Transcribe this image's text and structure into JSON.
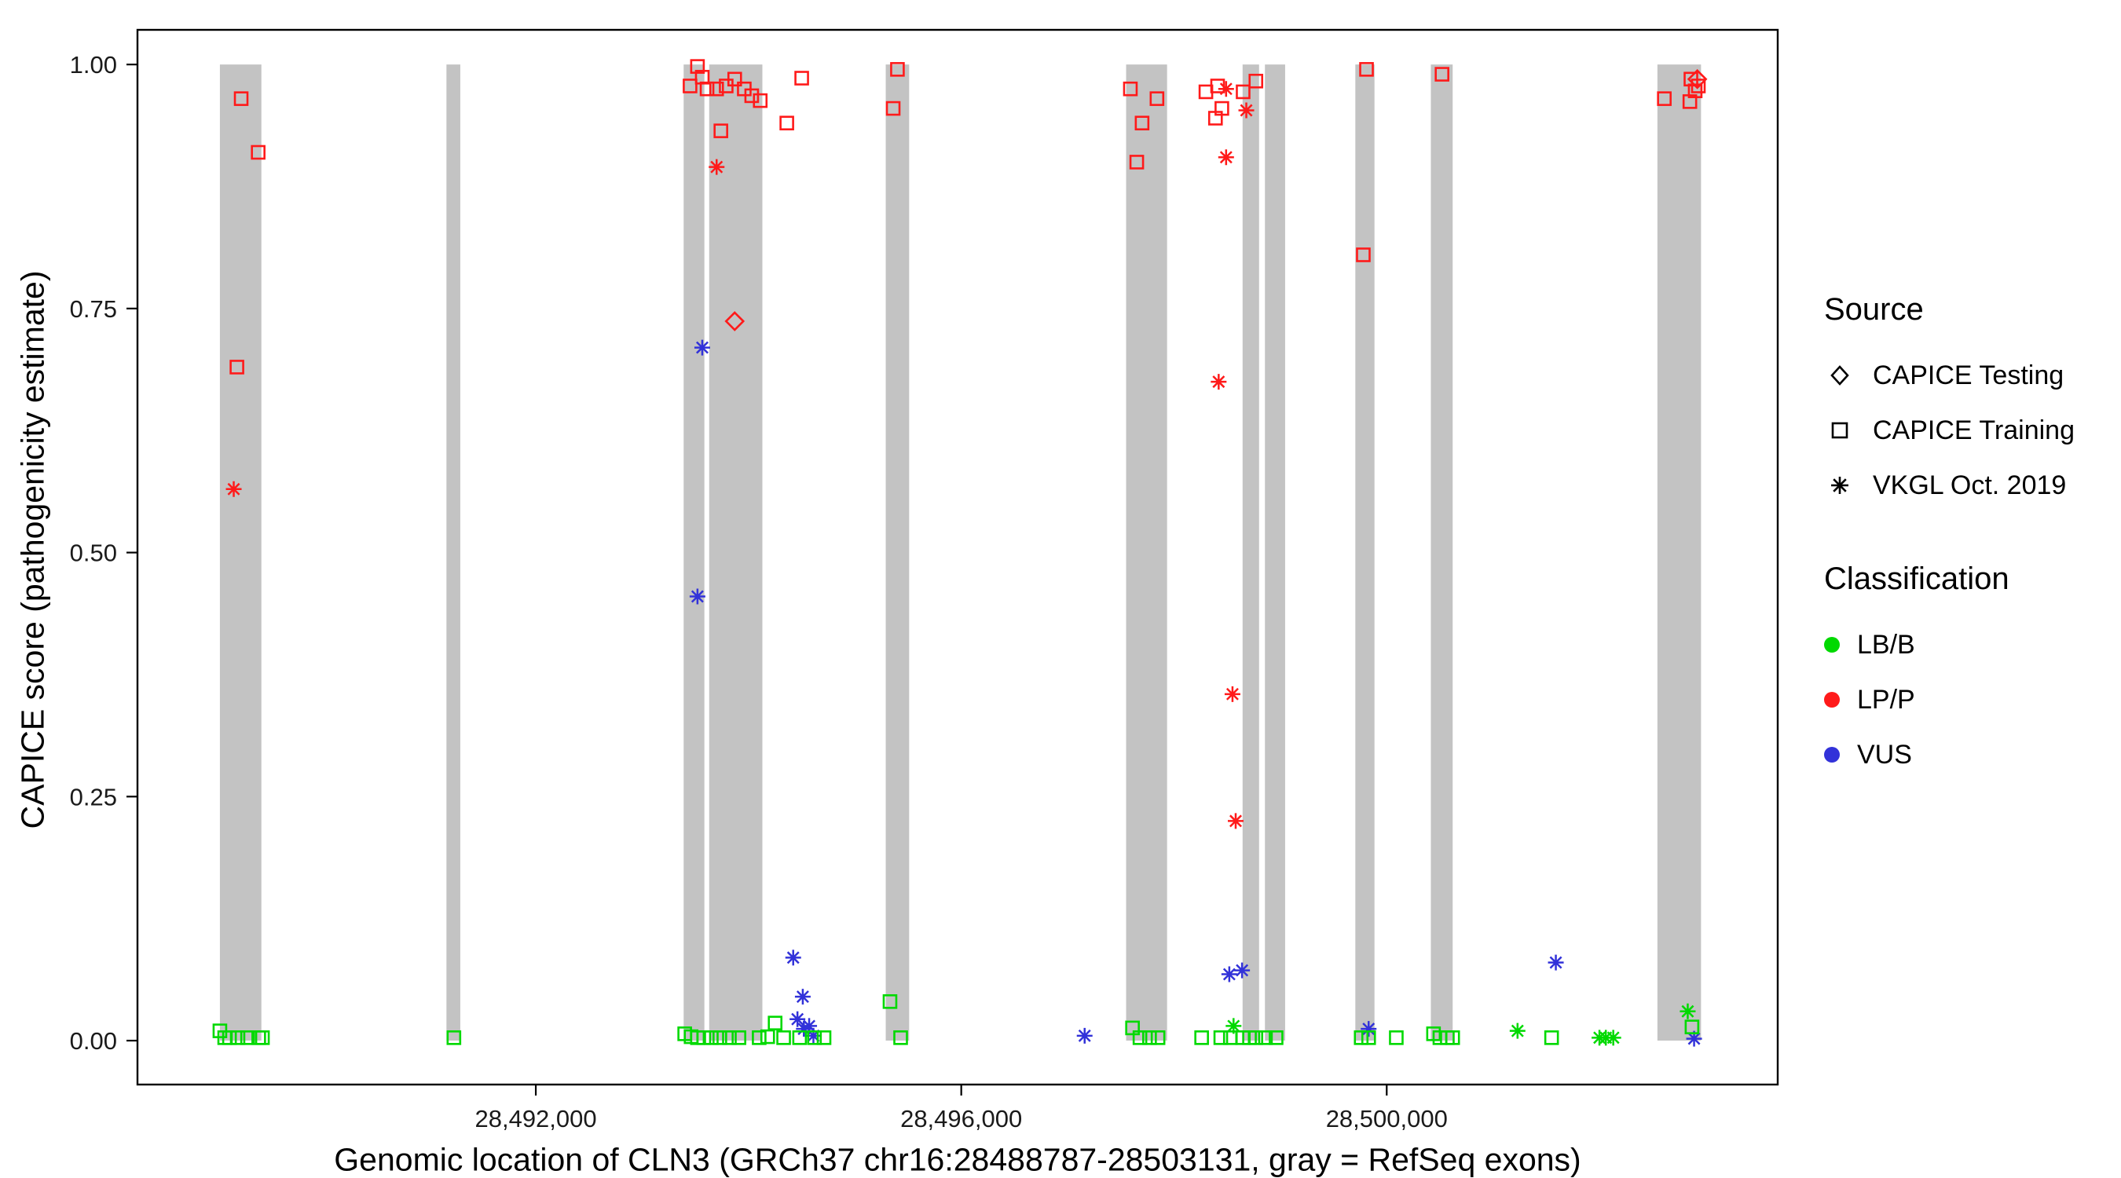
{
  "legend": {
    "source": {
      "title": "Source",
      "items": [
        {
          "label": "CAPICE Testing",
          "shape": "diamond"
        },
        {
          "label": "CAPICE Training",
          "shape": "square"
        },
        {
          "label": "VKGL Oct. 2019",
          "shape": "asterisk"
        }
      ]
    },
    "classification": {
      "title": "Classification",
      "items": [
        {
          "label": "LB/B",
          "color": "#00D900"
        },
        {
          "label": "LP/P",
          "color": "#FF1A1A"
        },
        {
          "label": "VUS",
          "color": "#3232D9"
        }
      ]
    }
  },
  "chart_data": {
    "type": "scatter",
    "title": "",
    "xlabel": "Genomic location of CLN3 (GRCh37 chr16:28488787-28503131, gray = RefSeq exons)",
    "ylabel": "CAPICE score (pathogenicity estimate)",
    "x_domain": [
      28488255,
      28503676
    ],
    "y_domain_expanded": [
      -0.045,
      1.0355
    ],
    "ylim": [
      0,
      1
    ],
    "grid": false,
    "legend_position": "right",
    "x_ticks": [
      {
        "value": 28492000,
        "label": "28,492,000"
      },
      {
        "value": 28496000,
        "label": "28,496,000"
      },
      {
        "value": 28500000,
        "label": "28,500,000"
      }
    ],
    "y_ticks": [
      {
        "value": 0.0,
        "label": "0.00"
      },
      {
        "value": 0.25,
        "label": "0.25"
      },
      {
        "value": 0.5,
        "label": "0.50"
      },
      {
        "value": 0.75,
        "label": "0.75"
      },
      {
        "value": 1.0,
        "label": "1.00"
      }
    ],
    "exon_color": "#C3C3C3",
    "exons": [
      [
        28489030,
        28489420
      ],
      [
        28491160,
        28491290
      ],
      [
        28493390,
        28493585
      ],
      [
        28493630,
        28494130
      ],
      [
        28495290,
        28495510
      ],
      [
        28497550,
        28497935
      ],
      [
        28498645,
        28498800
      ],
      [
        28498855,
        28499045
      ],
      [
        28499705,
        28499885
      ],
      [
        28500415,
        28500620
      ],
      [
        28502545,
        28502955
      ]
    ],
    "colors": {
      "LB/B": "#00D900",
      "LP/P": "#FF1A1A",
      "VUS": "#3232D9"
    },
    "shapes": {
      "training": "square",
      "testing": "diamond",
      "vkgl": "asterisk"
    },
    "source_labels": {
      "training": "CAPICE Training",
      "testing": "CAPICE Testing",
      "vkgl": "VKGL Oct. 2019"
    },
    "points_columns": [
      "position",
      "score",
      "classification",
      "source"
    ],
    "points": [
      [
        28489230,
        0.965,
        "LP/P",
        "training"
      ],
      [
        28489390,
        0.91,
        "LP/P",
        "training"
      ],
      [
        28489190,
        0.69,
        "LP/P",
        "training"
      ],
      [
        28489160,
        0.565,
        "LP/P",
        "vkgl"
      ],
      [
        28493450,
        0.978,
        "LP/P",
        "training"
      ],
      [
        28493520,
        0.998,
        "LP/P",
        "training"
      ],
      [
        28493565,
        0.987,
        "LP/P",
        "training"
      ],
      [
        28493610,
        0.975,
        "LP/P",
        "training"
      ],
      [
        28493700,
        0.975,
        "LP/P",
        "training"
      ],
      [
        28493790,
        0.978,
        "LP/P",
        "training"
      ],
      [
        28493870,
        0.985,
        "LP/P",
        "training"
      ],
      [
        28493960,
        0.975,
        "LP/P",
        "training"
      ],
      [
        28494030,
        0.968,
        "LP/P",
        "training"
      ],
      [
        28494110,
        0.963,
        "LP/P",
        "training"
      ],
      [
        28493740,
        0.932,
        "LP/P",
        "training"
      ],
      [
        28493700,
        0.895,
        "LP/P",
        "vkgl"
      ],
      [
        28494360,
        0.94,
        "LP/P",
        "training"
      ],
      [
        28494500,
        0.986,
        "LP/P",
        "training"
      ],
      [
        28493870,
        0.737,
        "LP/P",
        "testing"
      ],
      [
        28493565,
        0.71,
        "VUS",
        "vkgl"
      ],
      [
        28493520,
        0.455,
        "VUS",
        "vkgl"
      ],
      [
        28495400,
        0.995,
        "LP/P",
        "training"
      ],
      [
        28495360,
        0.955,
        "LP/P",
        "training"
      ],
      [
        28497590,
        0.975,
        "LP/P",
        "training"
      ],
      [
        28497840,
        0.965,
        "LP/P",
        "training"
      ],
      [
        28497700,
        0.94,
        "LP/P",
        "training"
      ],
      [
        28497650,
        0.9,
        "LP/P",
        "training"
      ],
      [
        28498300,
        0.972,
        "LP/P",
        "training"
      ],
      [
        28498410,
        0.978,
        "LP/P",
        "training"
      ],
      [
        28498490,
        0.975,
        "LP/P",
        "vkgl"
      ],
      [
        28498450,
        0.955,
        "LP/P",
        "training"
      ],
      [
        28498390,
        0.945,
        "LP/P",
        "training"
      ],
      [
        28498650,
        0.972,
        "LP/P",
        "training"
      ],
      [
        28498770,
        0.983,
        "LP/P",
        "training"
      ],
      [
        28498680,
        0.953,
        "LP/P",
        "vkgl"
      ],
      [
        28498490,
        0.905,
        "LP/P",
        "vkgl"
      ],
      [
        28498420,
        0.675,
        "LP/P",
        "vkgl"
      ],
      [
        28498550,
        0.355,
        "LP/P",
        "vkgl"
      ],
      [
        28498580,
        0.225,
        "LP/P",
        "vkgl"
      ],
      [
        28498520,
        0.068,
        "VUS",
        "vkgl"
      ],
      [
        28498640,
        0.072,
        "VUS",
        "vkgl"
      ],
      [
        28499810,
        0.995,
        "LP/P",
        "training"
      ],
      [
        28499780,
        0.805,
        "LP/P",
        "training"
      ],
      [
        28500520,
        0.99,
        "LP/P",
        "training"
      ],
      [
        28502610,
        0.965,
        "LP/P",
        "training"
      ],
      [
        28502860,
        0.985,
        "LP/P",
        "training"
      ],
      [
        28502900,
        0.973,
        "LP/P",
        "training"
      ],
      [
        28502850,
        0.962,
        "LP/P",
        "training"
      ],
      [
        28502930,
        0.978,
        "LP/P",
        "training"
      ],
      [
        28502920,
        0.985,
        "LP/P",
        "testing"
      ],
      [
        28494420,
        0.085,
        "VUS",
        "vkgl"
      ],
      [
        28494510,
        0.045,
        "VUS",
        "vkgl"
      ],
      [
        28494460,
        0.022,
        "VUS",
        "vkgl"
      ],
      [
        28494520,
        0.012,
        "VUS",
        "vkgl"
      ],
      [
        28494570,
        0.015,
        "VUS",
        "vkgl"
      ],
      [
        28494610,
        0.005,
        "VUS",
        "vkgl"
      ],
      [
        28497160,
        0.005,
        "VUS",
        "vkgl"
      ],
      [
        28499830,
        0.012,
        "VUS",
        "vkgl"
      ],
      [
        28501590,
        0.08,
        "VUS",
        "vkgl"
      ],
      [
        28502890,
        0.002,
        "VUS",
        "vkgl"
      ],
      [
        28489030,
        0.01,
        "LB/B",
        "training"
      ],
      [
        28489075,
        0.003,
        "LB/B",
        "training"
      ],
      [
        28489120,
        0.003,
        "LB/B",
        "training"
      ],
      [
        28489200,
        0.003,
        "LB/B",
        "training"
      ],
      [
        28489290,
        0.003,
        "LB/B",
        "training"
      ],
      [
        28489395,
        0.003,
        "LB/B",
        "training"
      ],
      [
        28489430,
        0.003,
        "LB/B",
        "training"
      ],
      [
        28491230,
        0.003,
        "LB/B",
        "training"
      ],
      [
        28493400,
        0.007,
        "LB/B",
        "training"
      ],
      [
        28493460,
        0.004,
        "LB/B",
        "training"
      ],
      [
        28493520,
        0.003,
        "LB/B",
        "training"
      ],
      [
        28493580,
        0.003,
        "LB/B",
        "training"
      ],
      [
        28493650,
        0.003,
        "LB/B",
        "training"
      ],
      [
        28493730,
        0.003,
        "LB/B",
        "training"
      ],
      [
        28493820,
        0.003,
        "LB/B",
        "training"
      ],
      [
        28493910,
        0.003,
        "LB/B",
        "training"
      ],
      [
        28494100,
        0.003,
        "LB/B",
        "training"
      ],
      [
        28494180,
        0.004,
        "LB/B",
        "training"
      ],
      [
        28494250,
        0.018,
        "LB/B",
        "training"
      ],
      [
        28494330,
        0.003,
        "LB/B",
        "training"
      ],
      [
        28494480,
        0.003,
        "LB/B",
        "training"
      ],
      [
        28494620,
        0.003,
        "LB/B",
        "training"
      ],
      [
        28494710,
        0.003,
        "LB/B",
        "training"
      ],
      [
        28495330,
        0.04,
        "LB/B",
        "training"
      ],
      [
        28495430,
        0.003,
        "LB/B",
        "training"
      ],
      [
        28497610,
        0.013,
        "LB/B",
        "training"
      ],
      [
        28497680,
        0.003,
        "LB/B",
        "training"
      ],
      [
        28497770,
        0.003,
        "LB/B",
        "training"
      ],
      [
        28497850,
        0.003,
        "LB/B",
        "training"
      ],
      [
        28498260,
        0.003,
        "LB/B",
        "training"
      ],
      [
        28498440,
        0.003,
        "LB/B",
        "training"
      ],
      [
        28498530,
        0.003,
        "LB/B",
        "training"
      ],
      [
        28498560,
        0.015,
        "LB/B",
        "vkgl"
      ],
      [
        28498645,
        0.003,
        "LB/B",
        "training"
      ],
      [
        28498710,
        0.003,
        "LB/B",
        "training"
      ],
      [
        28498770,
        0.003,
        "LB/B",
        "training"
      ],
      [
        28498860,
        0.003,
        "LB/B",
        "training"
      ],
      [
        28498960,
        0.003,
        "LB/B",
        "training"
      ],
      [
        28499760,
        0.003,
        "LB/B",
        "training"
      ],
      [
        28499830,
        0.003,
        "LB/B",
        "training"
      ],
      [
        28500090,
        0.003,
        "LB/B",
        "training"
      ],
      [
        28500440,
        0.007,
        "LB/B",
        "training"
      ],
      [
        28500500,
        0.003,
        "LB/B",
        "training"
      ],
      [
        28500570,
        0.003,
        "LB/B",
        "training"
      ],
      [
        28500620,
        0.003,
        "LB/B",
        "training"
      ],
      [
        28501230,
        0.01,
        "LB/B",
        "vkgl"
      ],
      [
        28501550,
        0.003,
        "LB/B",
        "training"
      ],
      [
        28502000,
        0.003,
        "LB/B",
        "vkgl"
      ],
      [
        28502060,
        0.003,
        "LB/B",
        "vkgl"
      ],
      [
        28502130,
        0.003,
        "LB/B",
        "vkgl"
      ],
      [
        28502830,
        0.03,
        "LB/B",
        "vkgl"
      ],
      [
        28502870,
        0.014,
        "LB/B",
        "training"
      ]
    ]
  }
}
